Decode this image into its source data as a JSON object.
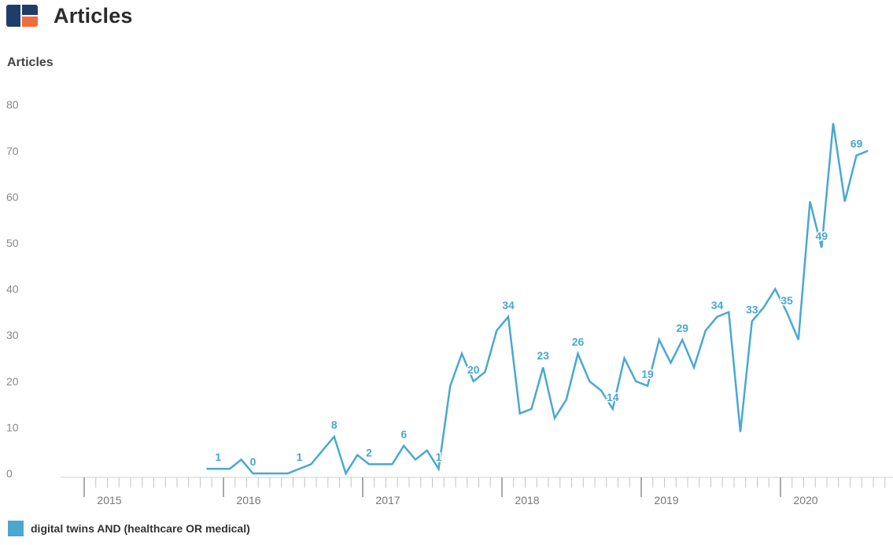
{
  "header": {
    "title": "Articles",
    "logo": "publication-logo"
  },
  "chart_data": {
    "type": "line",
    "title": "Articles",
    "xlabel": "",
    "ylabel": "",
    "ylim": [
      0,
      80
    ],
    "yticks": [
      0,
      10,
      20,
      30,
      40,
      50,
      60,
      70,
      80
    ],
    "year_labels": [
      "2015",
      "2016",
      "2017",
      "2018",
      "2019",
      "2020"
    ],
    "grid": false,
    "legend_position": "bottom-left",
    "color": "#4aa8d0",
    "series": [
      {
        "name": "digital twins AND (healthcare OR medical)",
        "x": [
          "2015-11",
          "2015-12",
          "2016-01",
          "2016-02",
          "2016-03",
          "2016-04",
          "2016-05",
          "2016-06",
          "2016-07",
          "2016-08",
          "2016-09",
          "2016-10",
          "2016-11",
          "2016-12",
          "2017-01",
          "2017-02",
          "2017-03",
          "2017-04",
          "2017-05",
          "2017-06",
          "2017-07",
          "2017-08",
          "2017-09",
          "2017-10",
          "2017-11",
          "2017-12",
          "2018-01",
          "2018-02",
          "2018-03",
          "2018-04",
          "2018-05",
          "2018-06",
          "2018-07",
          "2018-08",
          "2018-09",
          "2018-10",
          "2018-11",
          "2018-12",
          "2019-01",
          "2019-02",
          "2019-03",
          "2019-04",
          "2019-05",
          "2019-06",
          "2019-07",
          "2019-08",
          "2019-09",
          "2019-10",
          "2019-11",
          "2019-12",
          "2020-01",
          "2020-02",
          "2020-03",
          "2020-04",
          "2020-05",
          "2020-06",
          "2020-07",
          "2020-08"
        ],
        "values": [
          1,
          1,
          1,
          3,
          0,
          0,
          0,
          0,
          1,
          2,
          5,
          8,
          0,
          4,
          2,
          2,
          2,
          6,
          3,
          5,
          1,
          19,
          26,
          20,
          22,
          31,
          34,
          13,
          14,
          23,
          12,
          16,
          26,
          20,
          18,
          14,
          25,
          20,
          19,
          29,
          24,
          29,
          23,
          31,
          34,
          35,
          9,
          33,
          36,
          40,
          35,
          29,
          59,
          49,
          76,
          59,
          69,
          70
        ],
        "data_labels": {
          "1": "1",
          "4": "0",
          "8": "1",
          "11": "8",
          "14": "2",
          "17": "6",
          "20": "1",
          "23": "20",
          "26": "34",
          "29": "23",
          "32": "26",
          "35": "14",
          "38": "19",
          "41": "29",
          "44": "34",
          "47": "33",
          "50": "35",
          "53": "49",
          "56": "69"
        }
      }
    ]
  },
  "legend": {
    "label": "digital twins AND (healthcare OR medical)"
  }
}
